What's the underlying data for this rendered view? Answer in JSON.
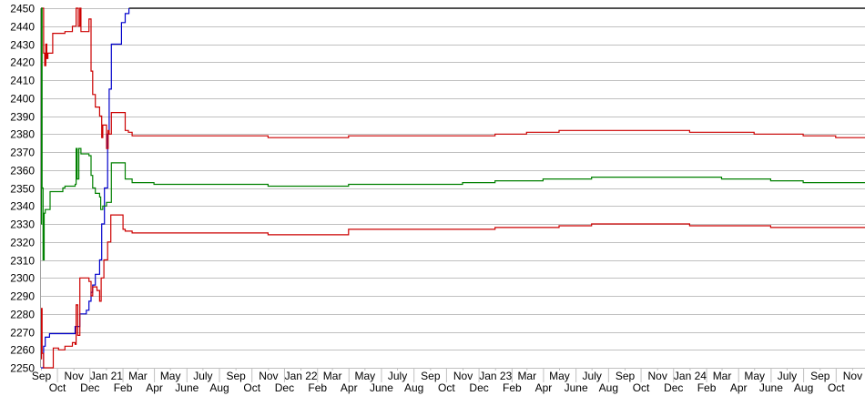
{
  "chart_data": {
    "type": "line",
    "title": "",
    "xlabel": "",
    "ylabel": "",
    "xlim": [
      "2020-09-01",
      "2024-11-25"
    ],
    "ylim": [
      2250,
      2450
    ],
    "yticks": [
      2250,
      2260,
      2270,
      2280,
      2290,
      2300,
      2310,
      2320,
      2330,
      2340,
      2350,
      2360,
      2370,
      2380,
      2390,
      2400,
      2410,
      2420,
      2430,
      2440,
      2450
    ],
    "xtick_labels": [
      "Sep",
      "Oct",
      "Nov",
      "Dec",
      "Jan 21",
      "Feb",
      "Mar",
      "Apr",
      "May",
      "June",
      "July",
      "Aug",
      "Sep",
      "Oct",
      "Nov",
      "Dec",
      "Jan 22",
      "Feb",
      "Mar",
      "Apr",
      "May",
      "June",
      "July",
      "Aug",
      "Sep",
      "Oct",
      "Nov",
      "Dec",
      "Jan 23",
      "Feb",
      "Mar",
      "Apr",
      "May",
      "June",
      "July",
      "Aug",
      "Sep",
      "Oct",
      "Nov",
      "Dec",
      "Jan 24",
      "Feb",
      "Mar",
      "Apr",
      "May",
      "June",
      "July",
      "Aug",
      "Sep",
      "Oct",
      "Nov"
    ],
    "grid": "horizontal",
    "legend": "none",
    "series": [
      {
        "color": "#000000",
        "points": [
          [
            "2021-02-13",
            2450
          ],
          [
            "2024-11-25",
            2450
          ]
        ]
      },
      {
        "color": "#0000cc",
        "points": [
          [
            "2020-09-01",
            2250
          ],
          [
            "2020-09-06",
            2262
          ],
          [
            "2020-09-09",
            2267
          ],
          [
            "2020-09-17",
            2269
          ],
          [
            "2020-10-12",
            2269
          ],
          [
            "2020-11-04",
            2273
          ],
          [
            "2020-11-13",
            2280
          ],
          [
            "2020-11-25",
            2282
          ],
          [
            "2020-11-30",
            2287
          ],
          [
            "2020-12-04",
            2292
          ],
          [
            "2020-12-07",
            2296
          ],
          [
            "2020-12-12",
            2302
          ],
          [
            "2020-12-17",
            2302
          ],
          [
            "2020-12-20",
            2310
          ],
          [
            "2020-12-24",
            2330
          ],
          [
            "2020-12-29",
            2350
          ],
          [
            "2021-01-04",
            2380
          ],
          [
            "2021-01-07",
            2405
          ],
          [
            "2021-01-11",
            2430
          ],
          [
            "2021-01-25",
            2430
          ],
          [
            "2021-01-30",
            2442
          ],
          [
            "2021-02-06",
            2447
          ],
          [
            "2021-02-13",
            2450
          ]
        ]
      },
      {
        "color": "#cc0000",
        "points": [
          [
            "2020-09-01",
            2450
          ],
          [
            "2020-09-06",
            2425
          ],
          [
            "2020-09-08",
            2418
          ],
          [
            "2020-09-10",
            2430
          ],
          [
            "2020-09-12",
            2422
          ],
          [
            "2020-09-14",
            2425
          ],
          [
            "2020-09-23",
            2436
          ],
          [
            "2020-10-16",
            2437
          ],
          [
            "2020-10-30",
            2440
          ],
          [
            "2020-11-06",
            2450
          ],
          [
            "2020-11-10",
            2440
          ],
          [
            "2020-11-13",
            2450
          ],
          [
            "2020-11-15",
            2437
          ],
          [
            "2020-11-30",
            2444
          ],
          [
            "2020-12-04",
            2415
          ],
          [
            "2020-12-07",
            2402
          ],
          [
            "2020-12-12",
            2395
          ],
          [
            "2020-12-20",
            2390
          ],
          [
            "2020-12-24",
            2378
          ],
          [
            "2020-12-26",
            2385
          ],
          [
            "2021-01-02",
            2372
          ],
          [
            "2021-01-05",
            2382
          ],
          [
            "2021-01-07",
            2380
          ],
          [
            "2021-01-11",
            2392
          ],
          [
            "2021-02-02",
            2392
          ],
          [
            "2021-02-06",
            2382
          ],
          [
            "2021-02-12",
            2381
          ],
          [
            "2021-02-19",
            2379
          ],
          [
            "2021-07-01",
            2379
          ],
          [
            "2021-11-01",
            2378
          ],
          [
            "2022-03-01",
            2378
          ],
          [
            "2022-04-01",
            2379
          ],
          [
            "2022-12-01",
            2379
          ],
          [
            "2023-01-01",
            2380
          ],
          [
            "2023-03-01",
            2381
          ],
          [
            "2023-05-01",
            2382
          ],
          [
            "2023-12-01",
            2382
          ],
          [
            "2024-01-01",
            2381
          ],
          [
            "2024-05-01",
            2380
          ],
          [
            "2024-08-01",
            2379
          ],
          [
            "2024-10-01",
            2378
          ],
          [
            "2024-11-25",
            2378
          ]
        ]
      },
      {
        "color": "#008000",
        "points": [
          [
            "2020-09-01",
            2330
          ],
          [
            "2020-09-02",
            2450
          ],
          [
            "2020-09-03",
            2350
          ],
          [
            "2020-09-05",
            2310
          ],
          [
            "2020-09-07",
            2336
          ],
          [
            "2020-09-09",
            2338
          ],
          [
            "2020-09-18",
            2348
          ],
          [
            "2020-10-12",
            2350
          ],
          [
            "2020-10-16",
            2351
          ],
          [
            "2020-11-04",
            2352
          ],
          [
            "2020-11-06",
            2372
          ],
          [
            "2020-11-08",
            2355
          ],
          [
            "2020-11-11",
            2372
          ],
          [
            "2020-11-15",
            2369
          ],
          [
            "2020-11-30",
            2368
          ],
          [
            "2020-12-04",
            2357
          ],
          [
            "2020-12-07",
            2350
          ],
          [
            "2020-12-12",
            2347
          ],
          [
            "2020-12-20",
            2345
          ],
          [
            "2020-12-22",
            2338
          ],
          [
            "2020-12-26",
            2340
          ],
          [
            "2021-01-02",
            2342
          ],
          [
            "2021-01-11",
            2364
          ],
          [
            "2021-02-02",
            2364
          ],
          [
            "2021-02-06",
            2355
          ],
          [
            "2021-02-19",
            2353
          ],
          [
            "2021-04-01",
            2352
          ],
          [
            "2021-11-01",
            2351
          ],
          [
            "2022-03-01",
            2351
          ],
          [
            "2022-04-01",
            2352
          ],
          [
            "2022-09-01",
            2352
          ],
          [
            "2022-11-01",
            2353
          ],
          [
            "2023-01-01",
            2354
          ],
          [
            "2023-04-01",
            2355
          ],
          [
            "2023-07-01",
            2356
          ],
          [
            "2024-01-01",
            2356
          ],
          [
            "2024-03-01",
            2355
          ],
          [
            "2024-06-01",
            2354
          ],
          [
            "2024-08-01",
            2353
          ],
          [
            "2024-11-25",
            2353
          ]
        ]
      },
      {
        "color": "#cc0000",
        "points": [
          [
            "2020-09-01",
            2255
          ],
          [
            "2020-09-02",
            2283
          ],
          [
            "2020-09-03",
            2258
          ],
          [
            "2020-09-06",
            2250
          ],
          [
            "2020-09-23",
            2250
          ],
          [
            "2020-09-24",
            2261
          ],
          [
            "2020-10-04",
            2260
          ],
          [
            "2020-10-16",
            2262
          ],
          [
            "2020-10-30",
            2264
          ],
          [
            "2020-11-04",
            2263
          ],
          [
            "2020-11-06",
            2285
          ],
          [
            "2020-11-09",
            2268
          ],
          [
            "2020-11-13",
            2300
          ],
          [
            "2020-11-30",
            2298
          ],
          [
            "2020-12-04",
            2290
          ],
          [
            "2020-12-07",
            2295
          ],
          [
            "2020-12-15",
            2293
          ],
          [
            "2020-12-20",
            2287
          ],
          [
            "2020-12-23",
            2300
          ],
          [
            "2020-12-28",
            2310
          ],
          [
            "2021-01-04",
            2320
          ],
          [
            "2021-01-10",
            2335
          ],
          [
            "2021-01-30",
            2335
          ],
          [
            "2021-02-02",
            2327
          ],
          [
            "2021-02-06",
            2326
          ],
          [
            "2021-02-19",
            2325
          ],
          [
            "2021-10-01",
            2325
          ],
          [
            "2021-11-01",
            2324
          ],
          [
            "2022-03-01",
            2324
          ],
          [
            "2022-04-01",
            2327
          ],
          [
            "2022-12-01",
            2327
          ],
          [
            "2023-01-01",
            2328
          ],
          [
            "2023-05-01",
            2329
          ],
          [
            "2023-07-01",
            2330
          ],
          [
            "2023-12-01",
            2330
          ],
          [
            "2024-01-01",
            2329
          ],
          [
            "2024-06-01",
            2328
          ],
          [
            "2024-11-25",
            2328
          ]
        ]
      }
    ]
  }
}
